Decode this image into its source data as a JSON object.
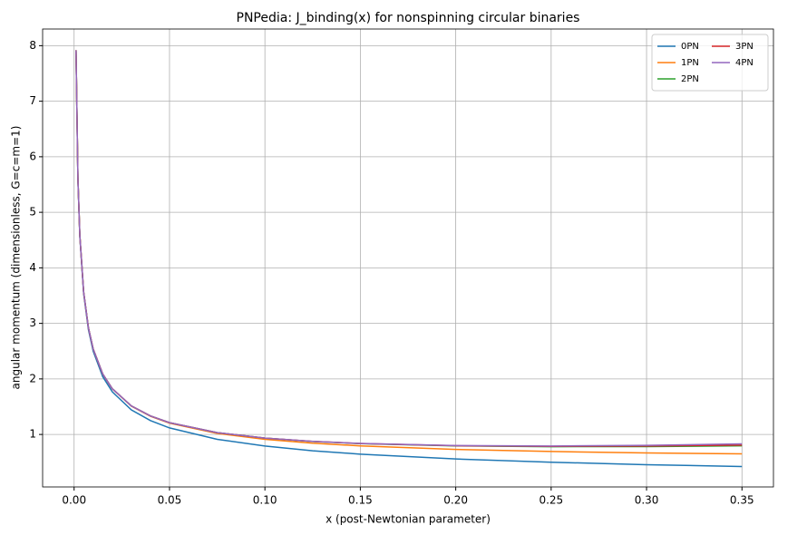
{
  "chart_data": {
    "type": "line",
    "title": "PNPedia: J_binding(x) for nonspinning circular binaries",
    "x_label": "x (post-Newtonian parameter)",
    "y_label": "angular momentum (dimensionless, G=c=m=1)",
    "x": [
      0.001,
      0.002,
      0.003,
      0.005,
      0.0075,
      0.01,
      0.015,
      0.02,
      0.03,
      0.04,
      0.05,
      0.075,
      0.1,
      0.125,
      0.15,
      0.2,
      0.25,
      0.3,
      0.35
    ],
    "series": [
      {
        "name": "0PN",
        "color": "#1f77b4",
        "values": [
          7.906,
          5.59,
          4.564,
          3.536,
          2.887,
          2.5,
          2.041,
          1.768,
          1.443,
          1.25,
          1.118,
          0.913,
          0.791,
          0.707,
          0.645,
          0.559,
          0.5,
          0.456,
          0.423
        ]
      },
      {
        "name": "1PN",
        "color": "#ff7f0e",
        "values": [
          7.918,
          5.607,
          4.585,
          3.563,
          2.92,
          2.539,
          2.088,
          1.822,
          1.51,
          1.327,
          1.204,
          1.019,
          0.913,
          0.843,
          0.794,
          0.731,
          0.693,
          0.667,
          0.651
        ]
      },
      {
        "name": "2PN",
        "color": "#2ca02c",
        "values": [
          7.918,
          5.607,
          4.585,
          3.563,
          2.921,
          2.539,
          2.09,
          1.824,
          1.514,
          1.333,
          1.212,
          1.033,
          0.935,
          0.874,
          0.835,
          0.794,
          0.78,
          0.782,
          0.795
        ]
      },
      {
        "name": "3PN",
        "color": "#d62728",
        "values": [
          7.918,
          5.607,
          4.585,
          3.563,
          2.921,
          2.539,
          2.09,
          1.824,
          1.514,
          1.333,
          1.212,
          1.033,
          0.935,
          0.875,
          0.837,
          0.797,
          0.786,
          0.792,
          0.809
        ]
      },
      {
        "name": "4PN",
        "color": "#9467bd",
        "values": [
          7.918,
          5.607,
          4.585,
          3.563,
          2.921,
          2.539,
          2.09,
          1.824,
          1.514,
          1.333,
          1.212,
          1.033,
          0.935,
          0.875,
          0.838,
          0.8,
          0.792,
          0.804,
          0.83
        ]
      }
    ],
    "xlim": [
      -0.0165,
      0.3665
    ],
    "xticks": [
      {
        "value": 0,
        "label": "0.00"
      },
      {
        "value": 0.05,
        "label": "0.05"
      },
      {
        "value": 0.1,
        "label": "0.10"
      },
      {
        "value": 0.15,
        "label": "0.15"
      },
      {
        "value": 0.2,
        "label": "0.20"
      },
      {
        "value": 0.25,
        "label": "0.25"
      },
      {
        "value": 0.3,
        "label": "0.30"
      },
      {
        "value": 0.35,
        "label": "0.35"
      }
    ],
    "ylim": [
      0.055,
      8.3
    ],
    "yticks": [
      1,
      2,
      3,
      4,
      5,
      6,
      7,
      8
    ],
    "grid": true,
    "legend": "upper-right",
    "legend_columns": 2
  }
}
